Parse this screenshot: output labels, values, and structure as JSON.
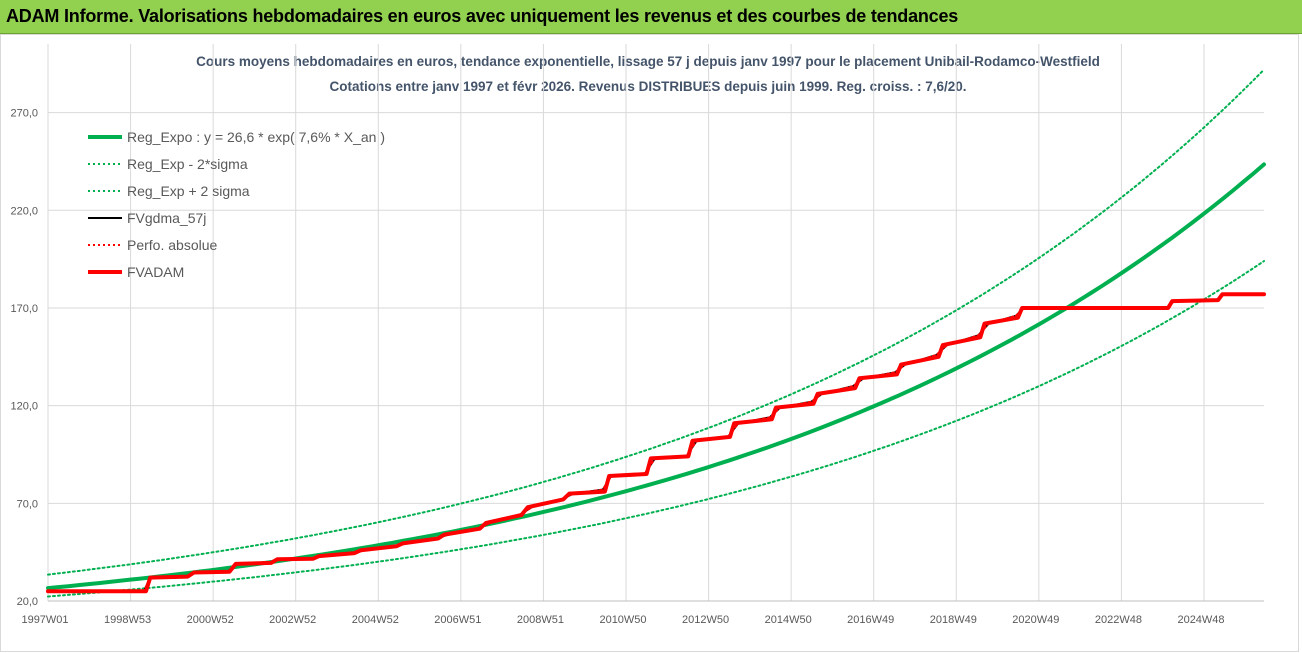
{
  "banner": {
    "title": "ADAM Informe. Valorisations hebdomadaires en euros avec uniquement les revenus et des courbes de tendances"
  },
  "colors": {
    "banner_bg": "#92d050",
    "reg_expo": "#00b050",
    "fvgdma": "#000000",
    "fvadam": "#ff0000",
    "perfo": "#ff0000"
  },
  "chart_data": {
    "type": "line",
    "title_lines": [
      "Cours moyens hebdomadaires en euros, tendance exponentielle, lissage 57 j depuis janv 1997  pour le placement Unibail-Rodamco-Westfield",
      "Cotations entre janv 1997 et févr 2026. Revenus DISTRIBUES depuis juin 1999.  Reg. croiss. : 7,6/20."
    ],
    "x_tick_labels": [
      "1997W01",
      "1998W53",
      "2000W52",
      "2002W52",
      "2004W52",
      "2006W51",
      "2008W51",
      "2010W50",
      "2012W50",
      "2014W50",
      "2016W49",
      "2018W49",
      "2020W49",
      "2022W48",
      "2024W48"
    ],
    "x_range": [
      1997.0,
      2026.15
    ],
    "y_tick_labels": [
      "20,0",
      "70,0",
      "120,0",
      "170,0",
      "220,0",
      "270,0"
    ],
    "y_ticks": [
      20,
      70,
      120,
      170,
      220,
      270
    ],
    "ylim": [
      20,
      300
    ],
    "grid": true,
    "legend_position": "top-left",
    "series": [
      {
        "name": "Reg_Expo : y = 26,6 * exp( 7,6% *  X_an )",
        "style": "solid-thick",
        "color": "#00b050",
        "points": [
          [
            1997.0,
            26.6
          ],
          [
            2026.15,
            243.5
          ]
        ]
      },
      {
        "name": "Reg_Exp - 2*sigma",
        "style": "dotted",
        "color": "#00b050",
        "points": [
          [
            1997.0,
            22.3
          ],
          [
            2026.15,
            194.0
          ]
        ]
      },
      {
        "name": "Reg_Exp + 2 sigma",
        "style": "dotted",
        "color": "#00b050",
        "points": [
          [
            1997.0,
            33.5
          ],
          [
            2026.15,
            292.0
          ]
        ]
      },
      {
        "name": "FVgdma_57j",
        "style": "solid",
        "color": "#000000",
        "points": [
          [
            1997.0,
            25.0
          ],
          [
            1999.3,
            25.0
          ],
          [
            1999.45,
            32.0
          ],
          [
            2000.3,
            32.5
          ],
          [
            2000.5,
            34.6
          ],
          [
            2001.3,
            35.0
          ],
          [
            2001.55,
            39.0
          ],
          [
            2002.3,
            39.5
          ],
          [
            2002.55,
            41.4
          ],
          [
            2003.3,
            41.6
          ],
          [
            2003.55,
            43.0
          ],
          [
            2004.3,
            44.5
          ],
          [
            2004.6,
            46.0
          ],
          [
            2005.3,
            48.0
          ],
          [
            2005.6,
            49.5
          ],
          [
            2006.3,
            52.0
          ],
          [
            2006.6,
            54.0
          ],
          [
            2007.3,
            57.0
          ],
          [
            2007.6,
            60.0
          ],
          [
            2008.3,
            64.0
          ],
          [
            2008.6,
            68.0
          ],
          [
            2009.3,
            72.0
          ],
          [
            2009.6,
            75.0
          ],
          [
            2010.3,
            77.0
          ],
          [
            2010.5,
            84.0
          ],
          [
            2011.3,
            85.0
          ],
          [
            2011.55,
            93.0
          ],
          [
            2012.3,
            94.0
          ],
          [
            2012.55,
            102.0
          ],
          [
            2013.3,
            104.0
          ],
          [
            2013.55,
            111.0
          ],
          [
            2014.3,
            114.0
          ],
          [
            2014.55,
            119.0
          ],
          [
            2015.3,
            122.0
          ],
          [
            2015.55,
            126.0
          ],
          [
            2016.3,
            130.0
          ],
          [
            2016.55,
            134.0
          ],
          [
            2017.3,
            137.0
          ],
          [
            2017.55,
            141.0
          ],
          [
            2018.3,
            146.0
          ],
          [
            2018.55,
            151.0
          ],
          [
            2019.3,
            156.0
          ],
          [
            2019.55,
            162.0
          ],
          [
            2020.2,
            166.0
          ],
          [
            2020.4,
            170.0
          ],
          [
            2023.8,
            170.0
          ],
          [
            2024.0,
            173.5
          ],
          [
            2025.0,
            174.0
          ],
          [
            2025.2,
            177.0
          ],
          [
            2026.15,
            177.0
          ]
        ]
      },
      {
        "name": "Perfo. absolue",
        "style": "dotted",
        "color": "#ff0000",
        "points": [
          [
            1997.0,
            25.0
          ],
          [
            1999.3,
            25.0
          ],
          [
            1999.45,
            32.0
          ],
          [
            2000.3,
            32.5
          ],
          [
            2000.5,
            34.6
          ],
          [
            2001.3,
            35.0
          ],
          [
            2001.55,
            39.0
          ],
          [
            2002.3,
            39.5
          ],
          [
            2002.55,
            41.4
          ],
          [
            2003.3,
            41.6
          ],
          [
            2003.55,
            43.0
          ],
          [
            2004.3,
            44.5
          ],
          [
            2004.6,
            46.0
          ],
          [
            2005.3,
            48.0
          ],
          [
            2005.6,
            49.5
          ],
          [
            2006.3,
            52.0
          ],
          [
            2006.6,
            54.0
          ],
          [
            2007.3,
            57.0
          ],
          [
            2007.6,
            60.0
          ],
          [
            2008.3,
            64.0
          ],
          [
            2008.6,
            68.0
          ],
          [
            2009.3,
            72.0
          ],
          [
            2009.6,
            75.0
          ],
          [
            2010.3,
            77.0
          ],
          [
            2010.5,
            84.0
          ],
          [
            2011.3,
            85.0
          ],
          [
            2011.55,
            93.0
          ],
          [
            2012.3,
            94.0
          ],
          [
            2012.55,
            102.0
          ],
          [
            2013.3,
            104.0
          ],
          [
            2013.55,
            111.0
          ],
          [
            2014.3,
            114.0
          ],
          [
            2014.55,
            119.0
          ],
          [
            2015.3,
            122.0
          ],
          [
            2015.55,
            126.0
          ],
          [
            2016.3,
            130.0
          ],
          [
            2016.55,
            134.0
          ],
          [
            2017.3,
            137.0
          ],
          [
            2017.55,
            141.0
          ],
          [
            2018.3,
            146.0
          ],
          [
            2018.55,
            151.0
          ],
          [
            2019.3,
            156.0
          ],
          [
            2019.55,
            162.0
          ],
          [
            2020.2,
            166.0
          ],
          [
            2020.4,
            170.0
          ],
          [
            2023.8,
            170.0
          ],
          [
            2024.0,
            173.5
          ],
          [
            2025.0,
            174.0
          ],
          [
            2025.2,
            177.0
          ],
          [
            2026.15,
            177.0
          ]
        ]
      },
      {
        "name": "FVADAM",
        "style": "solid-thick",
        "color": "#ff0000",
        "points": [
          [
            1997.0,
            25.0
          ],
          [
            1999.35,
            25.0
          ],
          [
            1999.45,
            32.0
          ],
          [
            2000.35,
            32.5
          ],
          [
            2000.5,
            34.6
          ],
          [
            2001.35,
            35.0
          ],
          [
            2001.5,
            39.0
          ],
          [
            2002.35,
            39.5
          ],
          [
            2002.5,
            41.4
          ],
          [
            2003.35,
            41.6
          ],
          [
            2003.5,
            43.0
          ],
          [
            2004.35,
            44.5
          ],
          [
            2004.5,
            46.0
          ],
          [
            2005.35,
            48.0
          ],
          [
            2005.5,
            49.5
          ],
          [
            2006.35,
            52.0
          ],
          [
            2006.5,
            54.0
          ],
          [
            2007.35,
            57.0
          ],
          [
            2007.5,
            60.0
          ],
          [
            2008.35,
            64.0
          ],
          [
            2008.5,
            68.0
          ],
          [
            2009.35,
            72.0
          ],
          [
            2009.5,
            75.0
          ],
          [
            2010.35,
            76.0
          ],
          [
            2010.45,
            84.0
          ],
          [
            2011.35,
            85.0
          ],
          [
            2011.45,
            93.0
          ],
          [
            2012.35,
            94.0
          ],
          [
            2012.45,
            102.0
          ],
          [
            2013.35,
            104.0
          ],
          [
            2013.45,
            111.0
          ],
          [
            2014.35,
            113.0
          ],
          [
            2014.45,
            119.0
          ],
          [
            2015.35,
            121.0
          ],
          [
            2015.45,
            126.0
          ],
          [
            2016.35,
            129.0
          ],
          [
            2016.45,
            134.0
          ],
          [
            2017.35,
            136.0
          ],
          [
            2017.45,
            141.0
          ],
          [
            2018.35,
            145.0
          ],
          [
            2018.45,
            151.0
          ],
          [
            2019.35,
            155.0
          ],
          [
            2019.45,
            162.0
          ],
          [
            2020.25,
            165.0
          ],
          [
            2020.35,
            170.0
          ],
          [
            2023.85,
            170.0
          ],
          [
            2023.95,
            173.5
          ],
          [
            2025.05,
            174.0
          ],
          [
            2025.15,
            177.0
          ],
          [
            2026.15,
            177.0
          ]
        ]
      }
    ]
  }
}
